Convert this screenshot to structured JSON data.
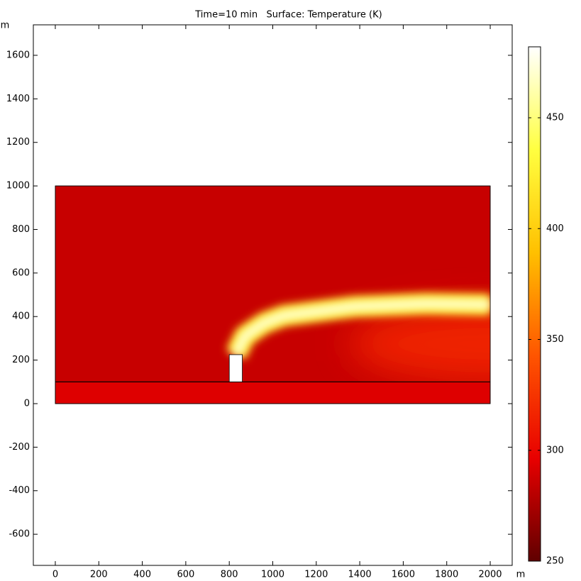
{
  "chart_data": {
    "type": "surface",
    "title": "Time=10 min   Surface: Temperature (K)",
    "x_label": "m",
    "y_label": "m",
    "xlim": [
      -101,
      2101
    ],
    "ylim": [
      -743,
      1740
    ],
    "xticks": [
      0,
      200,
      400,
      600,
      800,
      1000,
      1200,
      1400,
      1600,
      1800,
      2000
    ],
    "yticks": [
      -600,
      -400,
      -200,
      0,
      200,
      400,
      600,
      800,
      1000,
      1200,
      1400,
      1600
    ],
    "clim": [
      250,
      482
    ],
    "cticks": [
      250,
      300,
      350,
      400,
      450
    ],
    "colormap": [
      "#600000",
      "#e80000",
      "#ff5500",
      "#ffc000",
      "#ffff40",
      "#ffffff"
    ],
    "regions": [
      {
        "x": [
          0,
          2000
        ],
        "y": [
          100,
          1000
        ],
        "value": 285
      },
      {
        "x": [
          0,
          2000
        ],
        "y": [
          0,
          100
        ],
        "value": 293
      }
    ],
    "warm": {
      "x": [
        1350,
        2000
      ],
      "y": [
        100,
        450
      ],
      "value": 318
    },
    "plume": {
      "x": [
        830,
        871,
        960,
        1050,
        1377,
        1703,
        2000
      ],
      "y": [
        225,
        310,
        370,
        404,
        446,
        459,
        455
      ],
      "edge": 420,
      "core": 470
    },
    "chimney": {
      "x": [
        800,
        860
      ],
      "y": [
        100,
        225
      ]
    }
  }
}
